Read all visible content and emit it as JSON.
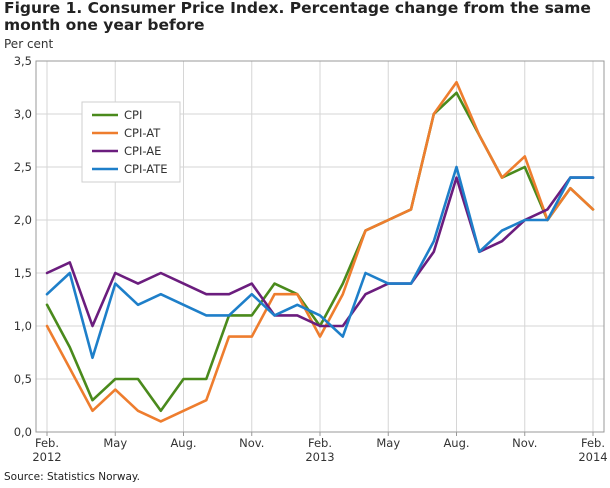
{
  "chart_data": {
    "type": "line",
    "title": "Figure 1. Consumer Price Index. Percentage change from the same month one year before",
    "ylabel": "Per cent",
    "xlabel": "",
    "ylim": [
      0,
      3.5
    ],
    "yticks": [
      "0,0",
      "0,5",
      "1,0",
      "1,5",
      "2,0",
      "2,5",
      "3,0",
      "3,5"
    ],
    "ytick_values": [
      0,
      0.5,
      1.0,
      1.5,
      2.0,
      2.5,
      3.0,
      3.5
    ],
    "x_tick_labels": [
      {
        "index": 0,
        "line1": "Feb.",
        "line2": "2012"
      },
      {
        "index": 3,
        "line1": "May",
        "line2": ""
      },
      {
        "index": 6,
        "line1": "Aug.",
        "line2": ""
      },
      {
        "index": 9,
        "line1": "Nov.",
        "line2": ""
      },
      {
        "index": 12,
        "line1": "Feb.",
        "line2": "2013"
      },
      {
        "index": 15,
        "line1": "May",
        "line2": ""
      },
      {
        "index": 18,
        "line1": "Aug.",
        "line2": ""
      },
      {
        "index": 21,
        "line1": "Nov.",
        "line2": ""
      },
      {
        "index": 24,
        "line1": "Feb.",
        "line2": "2014"
      }
    ],
    "categories": [
      "Feb 2012",
      "Mar 2012",
      "Apr 2012",
      "May 2012",
      "Jun 2012",
      "Jul 2012",
      "Aug 2012",
      "Sep 2012",
      "Oct 2012",
      "Nov 2012",
      "Dec 2012",
      "Jan 2013",
      "Feb 2013",
      "Mar 2013",
      "Apr 2013",
      "May 2013",
      "Jun 2013",
      "Jul 2013",
      "Aug 2013",
      "Sep 2013",
      "Oct 2013",
      "Nov 2013",
      "Dec 2013",
      "Jan 2014",
      "Feb 2014"
    ],
    "legend_position": "top-left",
    "grid": true,
    "series": [
      {
        "name": "CPI",
        "color": "#4a8a1c",
        "values": [
          1.2,
          0.8,
          0.3,
          0.5,
          0.5,
          0.2,
          0.5,
          0.5,
          1.1,
          1.1,
          1.4,
          1.3,
          1.0,
          1.4,
          1.9,
          2.0,
          2.1,
          3.0,
          3.2,
          2.8,
          2.4,
          2.5,
          2.0,
          2.3,
          2.1
        ]
      },
      {
        "name": "CPI-AT",
        "color": "#ee7d2e",
        "values": [
          1.0,
          0.6,
          0.2,
          0.4,
          0.2,
          0.1,
          0.2,
          0.3,
          0.9,
          0.9,
          1.3,
          1.3,
          0.9,
          1.3,
          1.9,
          2.0,
          2.1,
          3.0,
          3.3,
          2.8,
          2.4,
          2.6,
          2.0,
          2.3,
          2.1
        ]
      },
      {
        "name": "CPI-AE",
        "color": "#6b1d7e",
        "values": [
          1.5,
          1.6,
          1.0,
          1.5,
          1.4,
          1.5,
          1.4,
          1.3,
          1.3,
          1.4,
          1.1,
          1.1,
          1.0,
          1.0,
          1.3,
          1.4,
          1.4,
          1.7,
          2.4,
          1.7,
          1.8,
          2.0,
          2.1,
          2.4,
          2.4
        ]
      },
      {
        "name": "CPI-ATE",
        "color": "#1e7fc9",
        "values": [
          1.3,
          1.5,
          0.7,
          1.4,
          1.2,
          1.3,
          1.2,
          1.1,
          1.1,
          1.3,
          1.1,
          1.2,
          1.1,
          0.9,
          1.5,
          1.4,
          1.4,
          1.8,
          2.5,
          1.7,
          1.9,
          2.0,
          2.0,
          2.4,
          2.4
        ]
      }
    ]
  },
  "source_text": "Source: Statistics Norway."
}
